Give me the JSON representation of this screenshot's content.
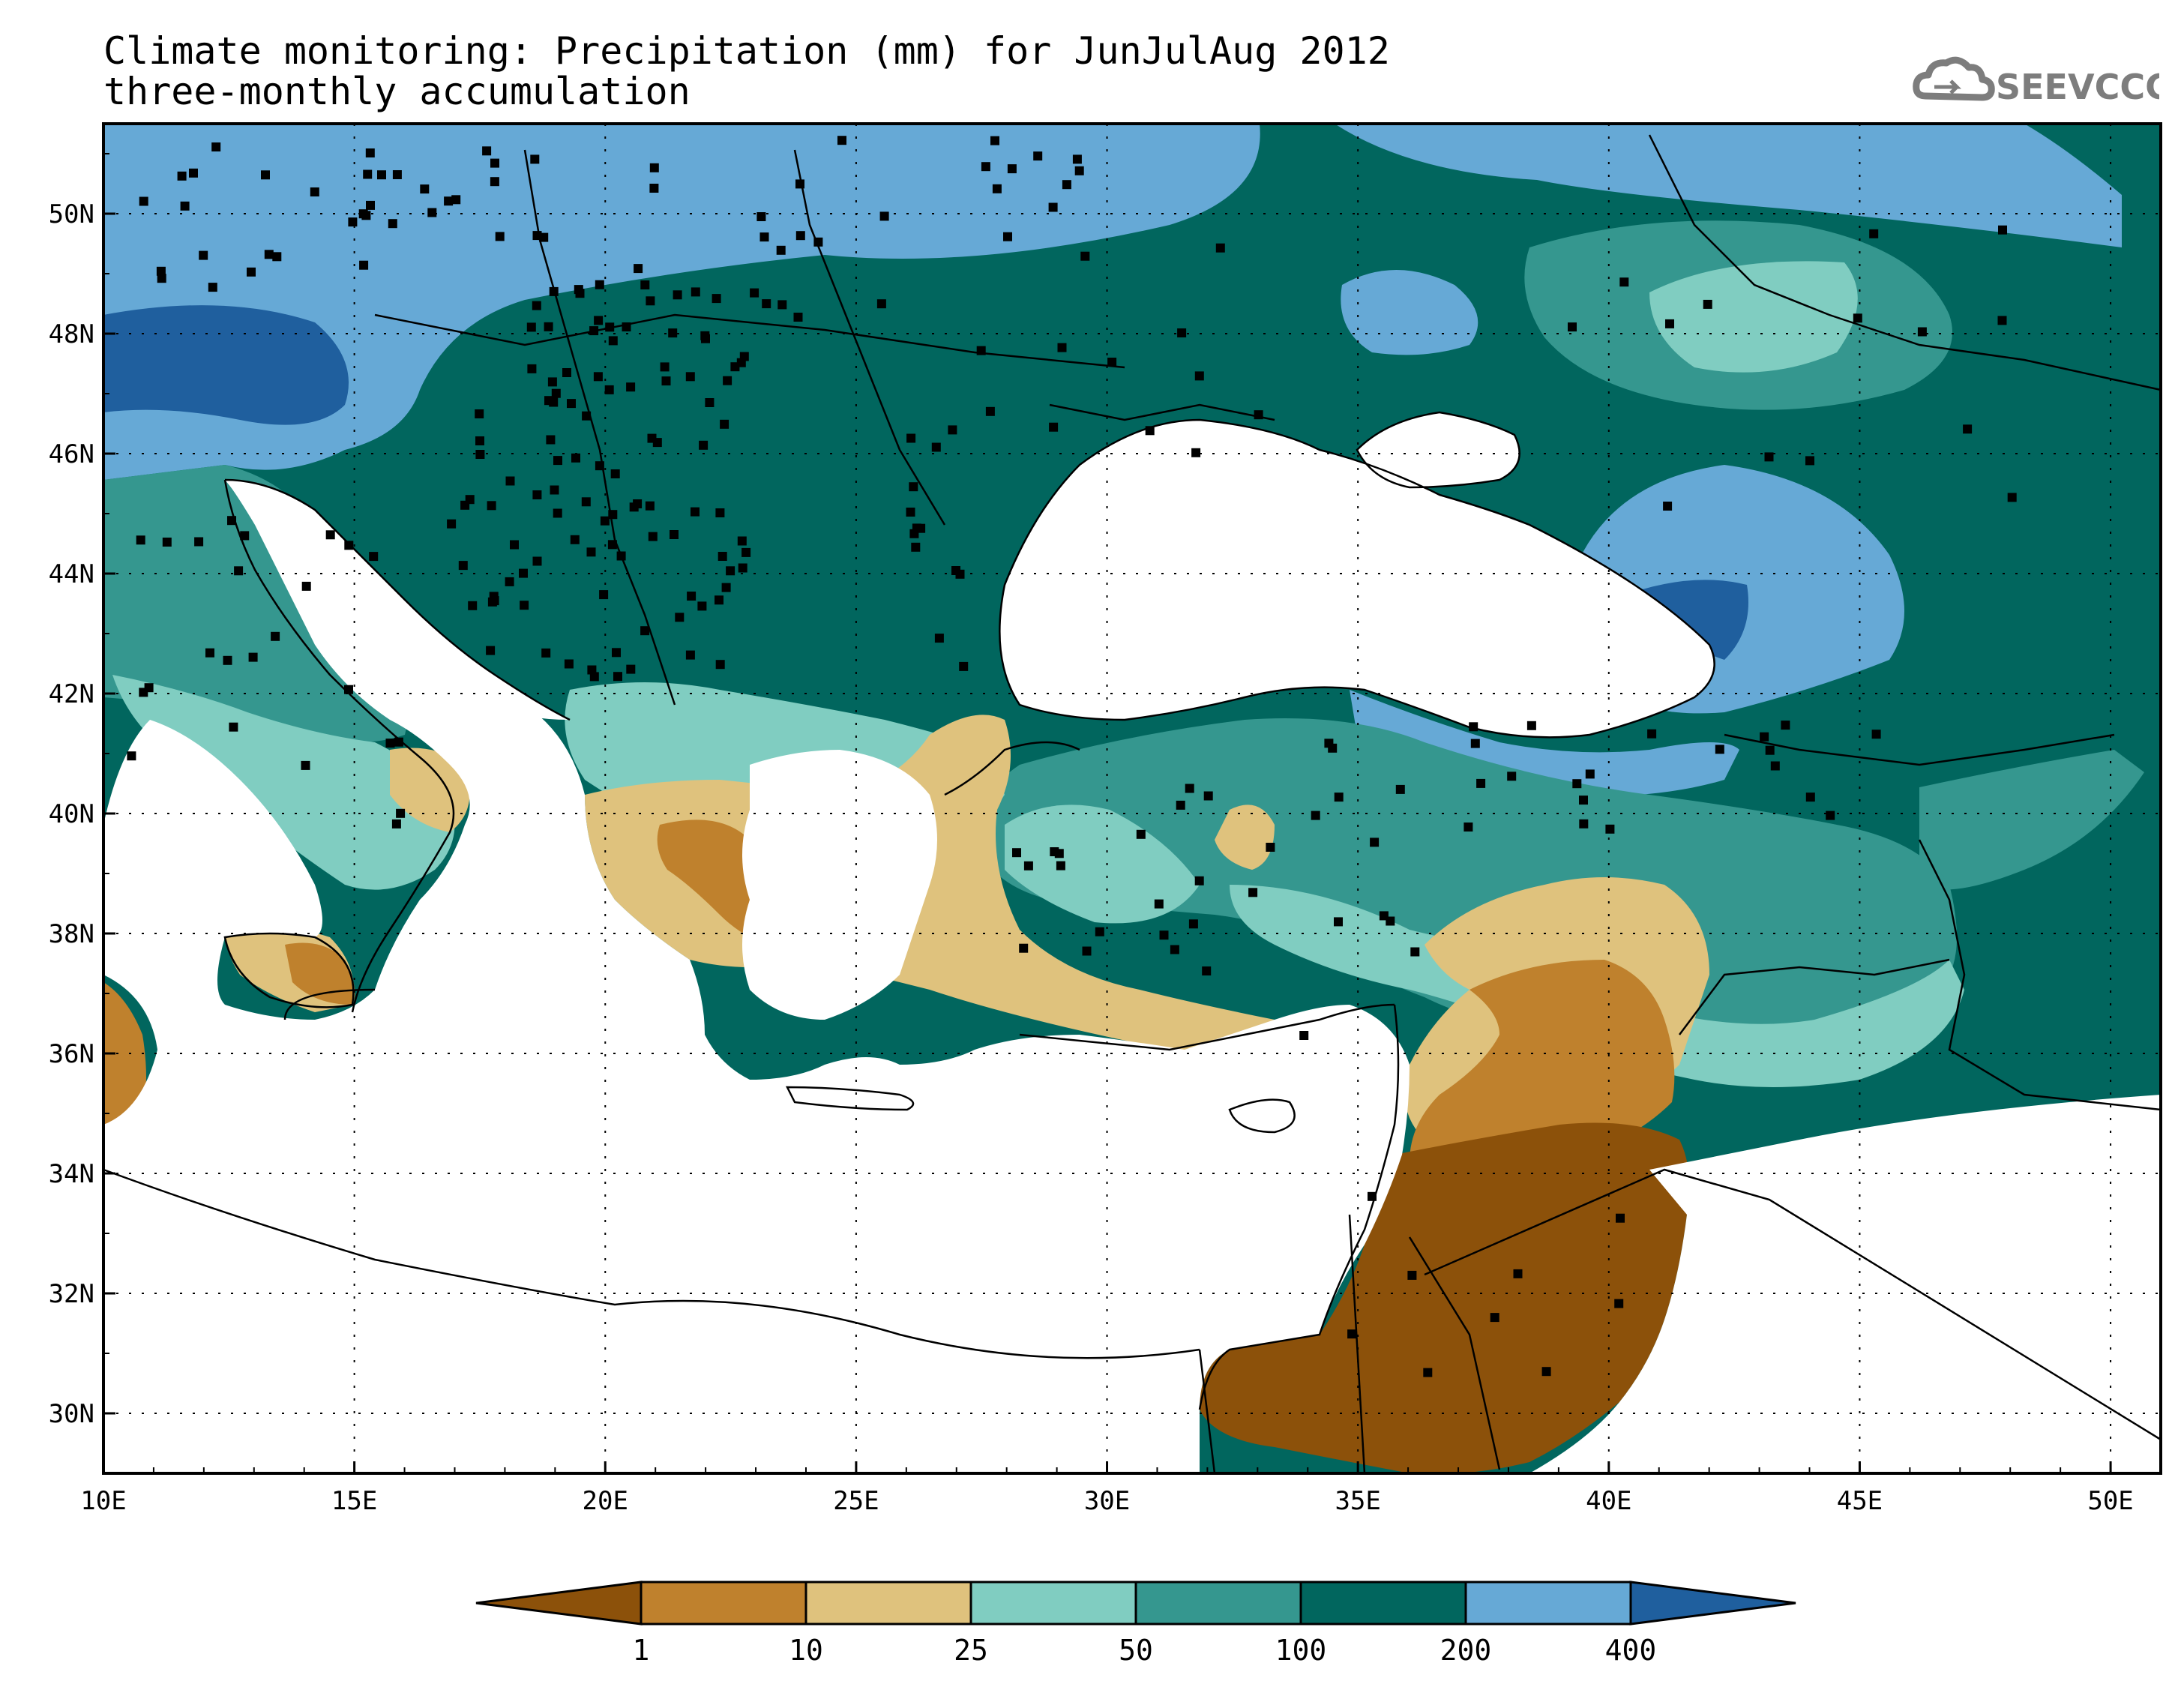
{
  "header": {
    "title_line1": "Climate monitoring: Precipitation (mm) for JunJulAug 2012",
    "title_line2": "three-monthly accumulation",
    "logo_text": "SEEVCCC"
  },
  "map": {
    "lon_range": [
      10,
      51
    ],
    "lat_range": [
      29,
      51.5
    ],
    "lon_ticks": [
      "10E",
      "15E",
      "20E",
      "25E",
      "30E",
      "35E",
      "40E",
      "45E",
      "50E"
    ],
    "lat_ticks": [
      "30N",
      "32N",
      "34N",
      "36N",
      "38N",
      "40N",
      "42N",
      "44N",
      "46N",
      "48N",
      "50N"
    ],
    "grid": "dotted"
  },
  "colorbar": {
    "thresholds": [
      "1",
      "10",
      "25",
      "50",
      "100",
      "200",
      "400"
    ],
    "colors": [
      "#8c510a",
      "#bf812d",
      "#dfc27d",
      "#80cdc1",
      "#35978f",
      "#01665e",
      "#66a9d6",
      "#1f5f9e"
    ]
  }
}
